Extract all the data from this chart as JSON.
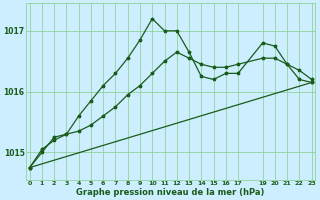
{
  "title": "Graphe pression niveau de la mer (hPa)",
  "bg_color": "#cceeff",
  "grid_color": "#88cc88",
  "line_color": "#1a5c1a",
  "line1": {
    "x": [
      0,
      1,
      2,
      3,
      4,
      5,
      6,
      7,
      8,
      9,
      10,
      11,
      12,
      13,
      14,
      15,
      16,
      17,
      19,
      20,
      21,
      22,
      23
    ],
    "y": [
      1014.75,
      1015.0,
      1015.25,
      1015.3,
      1015.6,
      1015.85,
      1016.1,
      1016.3,
      1016.55,
      1016.85,
      1017.2,
      1017.0,
      1017.0,
      1016.65,
      1016.25,
      1016.2,
      1016.3,
      1016.3,
      1016.8,
      1016.75,
      1016.45,
      1016.2,
      1016.15
    ]
  },
  "line2": {
    "x": [
      0,
      1,
      2,
      3,
      4,
      5,
      6,
      7,
      8,
      9,
      10,
      11,
      12,
      13,
      14,
      15,
      16,
      17,
      19,
      20,
      21,
      22,
      23
    ],
    "y": [
      1014.75,
      1015.05,
      1015.2,
      1015.3,
      1015.35,
      1015.45,
      1015.6,
      1015.75,
      1015.95,
      1016.1,
      1016.3,
      1016.5,
      1016.65,
      1016.55,
      1016.45,
      1016.4,
      1016.4,
      1016.45,
      1016.55,
      1016.55,
      1016.45,
      1016.35,
      1016.2
    ]
  },
  "line3": {
    "x": [
      0,
      23
    ],
    "y": [
      1014.75,
      1016.15
    ]
  },
  "yticks": [
    1015,
    1016,
    1017
  ],
  "xticks": [
    0,
    1,
    2,
    3,
    4,
    5,
    6,
    7,
    8,
    9,
    10,
    11,
    12,
    13,
    14,
    15,
    16,
    17,
    19,
    20,
    21,
    22,
    23
  ],
  "xtick_labels": [
    "0",
    "1",
    "2",
    "3",
    "4",
    "5",
    "6",
    "7",
    "8",
    "9",
    "10",
    "11",
    "12",
    "13",
    "14",
    "15",
    "16",
    "17",
    "19",
    "20",
    "21",
    "22",
    "23"
  ],
  "ylim": [
    1014.55,
    1017.45
  ],
  "xlim": [
    -0.3,
    23.3
  ]
}
